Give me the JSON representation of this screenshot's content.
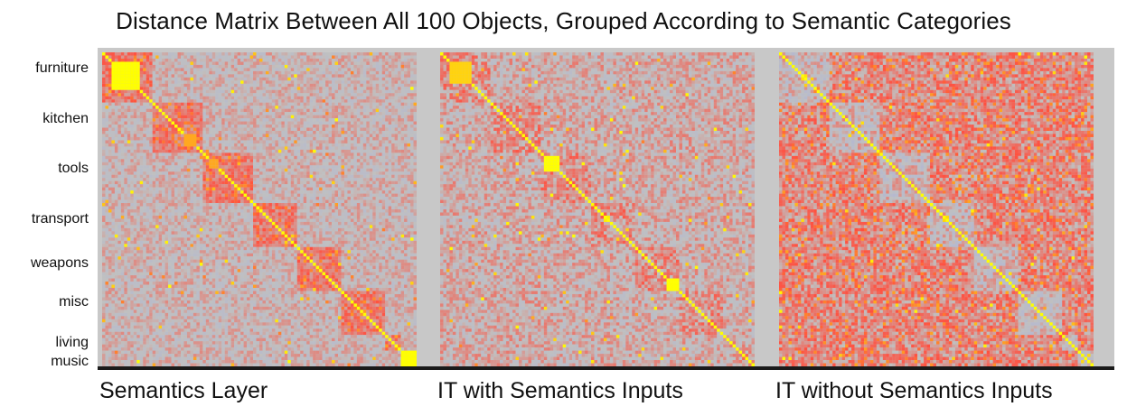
{
  "figure": {
    "title": "Distance Matrix Between All 100 Objects, Grouped According to Semantic Categories"
  },
  "chart_data": {
    "type": "heatmap",
    "title": "Distance Matrix Between All 100 Objects, Grouped According to Semantic Categories",
    "n_objects": 100,
    "category_labels": [
      "furniture",
      "kitchen",
      "tools",
      "transport",
      "weapons",
      "misc",
      "living",
      "music"
    ],
    "color_scale": {
      "low": "#a9b1e0",
      "mid": "#c0c0c0",
      "high": "#ff5040",
      "peak": "#ffff00"
    },
    "panels": [
      {
        "label": "Semantics Layer",
        "diagonal_value": 1.0,
        "within_category_similarity": 0.55,
        "background_similarity": 0.05,
        "noise": 0.35,
        "highlighted_blocks": [
          {
            "start": 3,
            "end": 12,
            "value": 1.0
          },
          {
            "start": 26,
            "end": 30,
            "value": 0.9
          },
          {
            "start": 34,
            "end": 37,
            "value": 0.9
          },
          {
            "start": 95,
            "end": 100,
            "value": 1.0
          }
        ]
      },
      {
        "label": "IT with Semantics Inputs",
        "diagonal_value": 1.0,
        "within_category_similarity": 0.35,
        "background_similarity": 0.12,
        "noise": 0.4,
        "highlighted_blocks": [
          {
            "start": 3,
            "end": 10,
            "value": 0.95
          },
          {
            "start": 33,
            "end": 38,
            "value": 1.0
          },
          {
            "start": 72,
            "end": 76,
            "value": 1.0
          }
        ]
      },
      {
        "label": "IT without Semantics Inputs",
        "diagonal_value": 1.0,
        "within_category_similarity": 0.0,
        "background_similarity": 0.45,
        "noise": 0.45,
        "highlighted_blocks": []
      }
    ]
  }
}
